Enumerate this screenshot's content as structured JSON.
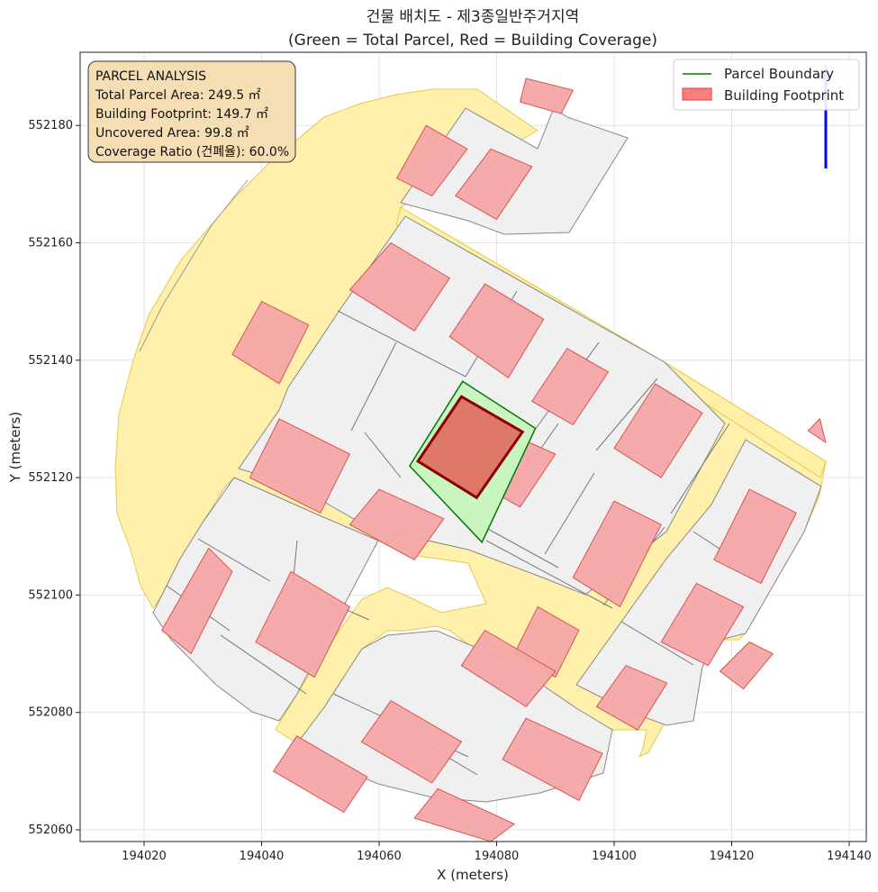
{
  "chart_data": {
    "type": "map",
    "title": "건물 배치도 - 제3종일반주거지역",
    "subtitle": "(Green = Total Parcel, Red = Building Coverage)",
    "xlabel": "X (meters)",
    "ylabel": "Y (meters)",
    "xlim": [
      194009,
      194142
    ],
    "ylim": [
      552058,
      552192
    ],
    "xticks": [
      194020,
      194040,
      194060,
      194080,
      194100,
      194120,
      194140
    ],
    "yticks": [
      552060,
      552080,
      552100,
      552120,
      552140,
      552160,
      552180
    ],
    "grid": true,
    "legend_position": "top-right",
    "legend": [
      {
        "label": "Parcel Boundary",
        "kind": "line",
        "color": "#008000"
      },
      {
        "label": "Building Footprint",
        "kind": "patch",
        "color": "#ff7f7f"
      }
    ],
    "info_box": {
      "position": "top-left",
      "lines": [
        "PARCEL ANALYSIS",
        "Total Parcel Area: 249.5 ㎡",
        "Building Footprint: 149.7 ㎡",
        "Uncovered Area: 99.8 ㎡",
        "Coverage Ratio (건폐율): 60.0%"
      ]
    },
    "values": {
      "total_parcel_area": 249.5,
      "building_footprint": 149.7,
      "uncovered_area": 99.8,
      "coverage_ratio_percent": 60.0
    },
    "colors": {
      "road": "#fff0a8",
      "road_edge": "#e8c84a",
      "surrounding_parcel": "#f0f0f0",
      "parcel_edge": "#777777",
      "building": "#f4a6a6",
      "building_edge": "#d9534f",
      "target_parcel_fill": "#c8f5c0",
      "target_parcel_edge": "#007a00",
      "target_building_fill": "#e07868",
      "target_building_edge": "#8b0000",
      "north_arrow": "#0000ff",
      "info_box": "#f5deb3"
    },
    "target_parcel": {
      "corners": [
        [
          194074.2,
          552136.4
        ],
        [
          194086.6,
          552128.4
        ],
        [
          194077.5,
          552109.0
        ],
        [
          194065.2,
          552122.0
        ]
      ]
    },
    "target_building": {
      "corners": [
        [
          194074.0,
          552133.8
        ],
        [
          194084.4,
          552127.8
        ],
        [
          194076.6,
          552116.6
        ],
        [
          194066.6,
          552122.8
        ]
      ]
    },
    "context_buildings": [
      [
        [
          194068,
          552180
        ],
        [
          194075,
          552176
        ],
        [
          194069,
          552168
        ],
        [
          194063,
          552171
        ]
      ],
      [
        [
          194079,
          552176
        ],
        [
          194086,
          552173
        ],
        [
          194080,
          552164
        ],
        [
          194073,
          552168
        ]
      ],
      [
        [
          194062,
          552160
        ],
        [
          194072,
          552154
        ],
        [
          194066,
          552145
        ],
        [
          194055,
          552152
        ]
      ],
      [
        [
          194078,
          552153
        ],
        [
          194088,
          552147
        ],
        [
          194082,
          552137
        ],
        [
          194072,
          552144
        ]
      ],
      [
        [
          194040,
          552150
        ],
        [
          194048,
          552146
        ],
        [
          194043,
          552136
        ],
        [
          194035,
          552141
        ]
      ],
      [
        [
          194092,
          552142
        ],
        [
          194099,
          552138
        ],
        [
          194093,
          552129
        ],
        [
          194086,
          552133
        ]
      ],
      [
        [
          194107,
          552136
        ],
        [
          194115,
          552131
        ],
        [
          194108,
          552120
        ],
        [
          194100,
          552125
        ]
      ],
      [
        [
          194043,
          552130
        ],
        [
          194055,
          552124
        ],
        [
          194050,
          552114
        ],
        [
          194038,
          552120
        ]
      ],
      [
        [
          194081,
          552128
        ],
        [
          194090,
          552124
        ],
        [
          194084,
          552115
        ],
        [
          194075,
          552120
        ]
      ],
      [
        [
          194060,
          552118
        ],
        [
          194071,
          552113
        ],
        [
          194066,
          552106
        ],
        [
          194055,
          552112
        ]
      ],
      [
        [
          194100,
          552116
        ],
        [
          194108,
          552112
        ],
        [
          194101,
          552098
        ],
        [
          194093,
          552103
        ]
      ],
      [
        [
          194123,
          552118
        ],
        [
          194131,
          552114
        ],
        [
          194125,
          552102
        ],
        [
          194117,
          552106
        ]
      ],
      [
        [
          194031,
          552108
        ],
        [
          194035,
          552104
        ],
        [
          194028,
          552090
        ],
        [
          194023,
          552094
        ]
      ],
      [
        [
          194045,
          552104
        ],
        [
          194055,
          552098
        ],
        [
          194049,
          552086
        ],
        [
          194039,
          552092
        ]
      ],
      [
        [
          194087,
          552098
        ],
        [
          194094,
          552094
        ],
        [
          194090,
          552086
        ],
        [
          194083,
          552090
        ]
      ],
      [
        [
          194114,
          552102
        ],
        [
          194122,
          552098
        ],
        [
          194116,
          552088
        ],
        [
          194108,
          552092
        ]
      ],
      [
        [
          194078,
          552094
        ],
        [
          194090,
          552087
        ],
        [
          194085,
          552081
        ],
        [
          194074,
          552088
        ]
      ],
      [
        [
          194062,
          552082
        ],
        [
          194074,
          552075
        ],
        [
          194069,
          552068
        ],
        [
          194057,
          552075
        ]
      ],
      [
        [
          194102,
          552088
        ],
        [
          194109,
          552085
        ],
        [
          194104,
          552077
        ],
        [
          194097,
          552081
        ]
      ],
      [
        [
          194123,
          552092
        ],
        [
          194127,
          552090
        ],
        [
          194122,
          552084
        ],
        [
          194118,
          552087
        ]
      ],
      [
        [
          194046,
          552076
        ],
        [
          194058,
          552069
        ],
        [
          194054,
          552063
        ],
        [
          194042,
          552070
        ]
      ],
      [
        [
          194085,
          552079
        ],
        [
          194098,
          552073
        ],
        [
          194094,
          552065
        ],
        [
          194081,
          552072
        ]
      ],
      [
        [
          194070,
          552067
        ],
        [
          194083,
          552061
        ],
        [
          194079,
          552058
        ],
        [
          194066,
          552062
        ]
      ],
      [
        [
          194085,
          552188
        ],
        [
          194093,
          552186
        ],
        [
          194091,
          552182
        ],
        [
          194084,
          552184
        ]
      ],
      [
        [
          194135,
          552130
        ],
        [
          194136,
          552126
        ],
        [
          194133,
          552128
        ]
      ]
    ]
  }
}
